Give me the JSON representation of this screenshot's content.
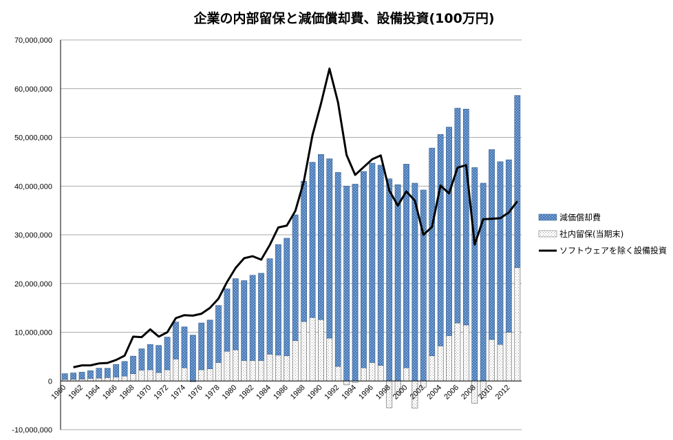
{
  "chart_data": {
    "type": "bar",
    "title": "企業の内部留保と減価償却費、設備投資(100万円)",
    "xlabel": "",
    "ylabel": "",
    "ylim": [
      -10000000,
      70000000
    ],
    "yticks": [
      -10000000,
      0,
      10000000,
      20000000,
      30000000,
      40000000,
      50000000,
      60000000,
      70000000
    ],
    "ytick_labels": [
      "-10,000,000",
      "0",
      "10,000,000",
      "20,000,000",
      "30,000,000",
      "40,000,000",
      "50,000,000",
      "60,000,000",
      "70,000,000"
    ],
    "grid": true,
    "legend_position": "right",
    "categories": [
      "1960",
      "1961",
      "1962",
      "1963",
      "1964",
      "1965",
      "1966",
      "1967",
      "1968",
      "1969",
      "1970",
      "1971",
      "1972",
      "1973",
      "1974",
      "1975",
      "1976",
      "1977",
      "1978",
      "1979",
      "1980",
      "1981",
      "1982",
      "1983",
      "1984",
      "1985",
      "1986",
      "1987",
      "1988",
      "1989",
      "1990",
      "1991",
      "1992",
      "1993",
      "1994",
      "1995",
      "1996",
      "1997",
      "1998",
      "1999",
      "2000",
      "2001",
      "2002",
      "2003",
      "2004",
      "2005",
      "2006",
      "2007",
      "2008",
      "2009",
      "2010",
      "2011",
      "2012",
      "2013"
    ],
    "x_labels": [
      "1960",
      "1962",
      "1964",
      "1966",
      "1968",
      "1970",
      "1972",
      "1974",
      "1976",
      "1978",
      "1980",
      "1982",
      "1984",
      "1986",
      "1988",
      "1990",
      "1992",
      "1994",
      "1996",
      "1998",
      "2000",
      "2002",
      "2004",
      "2006",
      "2008",
      "2010",
      "2012"
    ],
    "series": [
      {
        "name": "社内留保(当期末)",
        "kind": "bar",
        "values": [
          300000,
          350000,
          400000,
          500000,
          600000,
          700000,
          800000,
          1000000,
          1500000,
          2200000,
          2300000,
          1700000,
          2300000,
          4500000,
          2700000,
          -200000,
          2300000,
          2500000,
          3800000,
          6100000,
          6400000,
          4200000,
          4200000,
          4200000,
          5500000,
          5300000,
          5200000,
          8300000,
          12200000,
          13000000,
          12600000,
          8800000,
          3000000,
          -800000,
          -300000,
          2700000,
          3800000,
          3200000,
          -5500000,
          -2700000,
          2700000,
          -5600000,
          -1300000,
          5200000,
          7200000,
          9300000,
          11900000,
          11500000,
          -4600000,
          -3400000,
          8500000,
          7500000,
          10000000,
          23300000
        ]
      },
      {
        "name": "減価償却費",
        "kind": "stacked_bar",
        "values": [
          1200000,
          1300000,
          1400000,
          1600000,
          2000000,
          1900000,
          2600000,
          3000000,
          3600000,
          4400000,
          5200000,
          5600000,
          6700000,
          7600000,
          8400000,
          9400000,
          9600000,
          10000000,
          11700000,
          12800000,
          14600000,
          16400000,
          17500000,
          17900000,
          19600000,
          22700000,
          24100000,
          25800000,
          28800000,
          31900000,
          33900000,
          36800000,
          39800000,
          40000000,
          40400000,
          40300000,
          40900000,
          41100000,
          41500000,
          40300000,
          41800000,
          40600000,
          39200000,
          42600000,
          43400000,
          42800000,
          44100000,
          44300000,
          43800000,
          40600000,
          39000000,
          37500000,
          35400000,
          35300000
        ]
      },
      {
        "name": "ソフトウェアを除く設備投資",
        "kind": "line",
        "values": [
          null,
          2800000,
          3200000,
          3200000,
          3600000,
          3700000,
          4300000,
          5200000,
          9100000,
          9000000,
          10600000,
          9100000,
          10000000,
          12900000,
          13500000,
          13400000,
          13800000,
          15000000,
          16900000,
          20300000,
          23200000,
          25200000,
          25600000,
          24900000,
          27900000,
          31500000,
          31900000,
          34900000,
          41000000,
          50400000,
          56900000,
          64100000,
          57200000,
          46400000,
          42300000,
          43900000,
          45500000,
          46300000,
          39100000,
          36000000,
          38900000,
          37000000,
          30000000,
          31600000,
          40100000,
          38500000,
          43800000,
          44300000,
          28000000,
          33200000,
          33300000,
          33400000,
          34600000,
          36900000
        ]
      }
    ]
  }
}
